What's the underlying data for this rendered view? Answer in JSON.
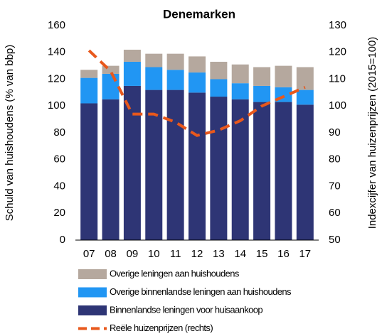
{
  "chart_data": {
    "type": "bar",
    "stacked": true,
    "title": "Denemarken",
    "ylabel": "Schuld van huishoudens (% van bbp)",
    "y2label": "Indexcijfer van huizenprijzen (2015=100)",
    "categories": [
      "07",
      "08",
      "09",
      "10",
      "11",
      "12",
      "13",
      "14",
      "15",
      "16",
      "17"
    ],
    "series": [
      {
        "name": "Binnenlandse leningen voor huisaankoop",
        "color": "#2e3575",
        "type": "bar",
        "values": [
          102,
          105,
          115,
          112,
          112,
          110,
          107,
          105,
          103,
          103,
          101
        ]
      },
      {
        "name": "Overige binnenlandse leningen aan huishoudens",
        "color": "#2196f3",
        "type": "bar",
        "values": [
          19,
          19,
          18,
          17,
          15,
          15,
          13,
          12,
          12,
          11,
          11
        ]
      },
      {
        "name": "Overige leningen aan huishoudens",
        "color": "#b5a89e",
        "type": "bar",
        "values": [
          6,
          6,
          9,
          10,
          12,
          12,
          13,
          14,
          14,
          16,
          17
        ]
      },
      {
        "name": "Reële huizenprijzen (rechts)",
        "color": "#e8581c",
        "type": "line",
        "axis": "y2",
        "values": [
          120.7,
          113,
          97,
          97,
          94,
          89,
          91,
          94.5,
          100,
          103.5,
          107
        ]
      }
    ],
    "ylim": [
      0,
      160
    ],
    "yticks": [
      0,
      20,
      40,
      60,
      80,
      100,
      120,
      140,
      160
    ],
    "y2lim": [
      50,
      130
    ],
    "y2ticks": [
      50,
      60,
      70,
      80,
      90,
      100,
      110,
      120,
      130
    ],
    "legend": "bottom"
  }
}
